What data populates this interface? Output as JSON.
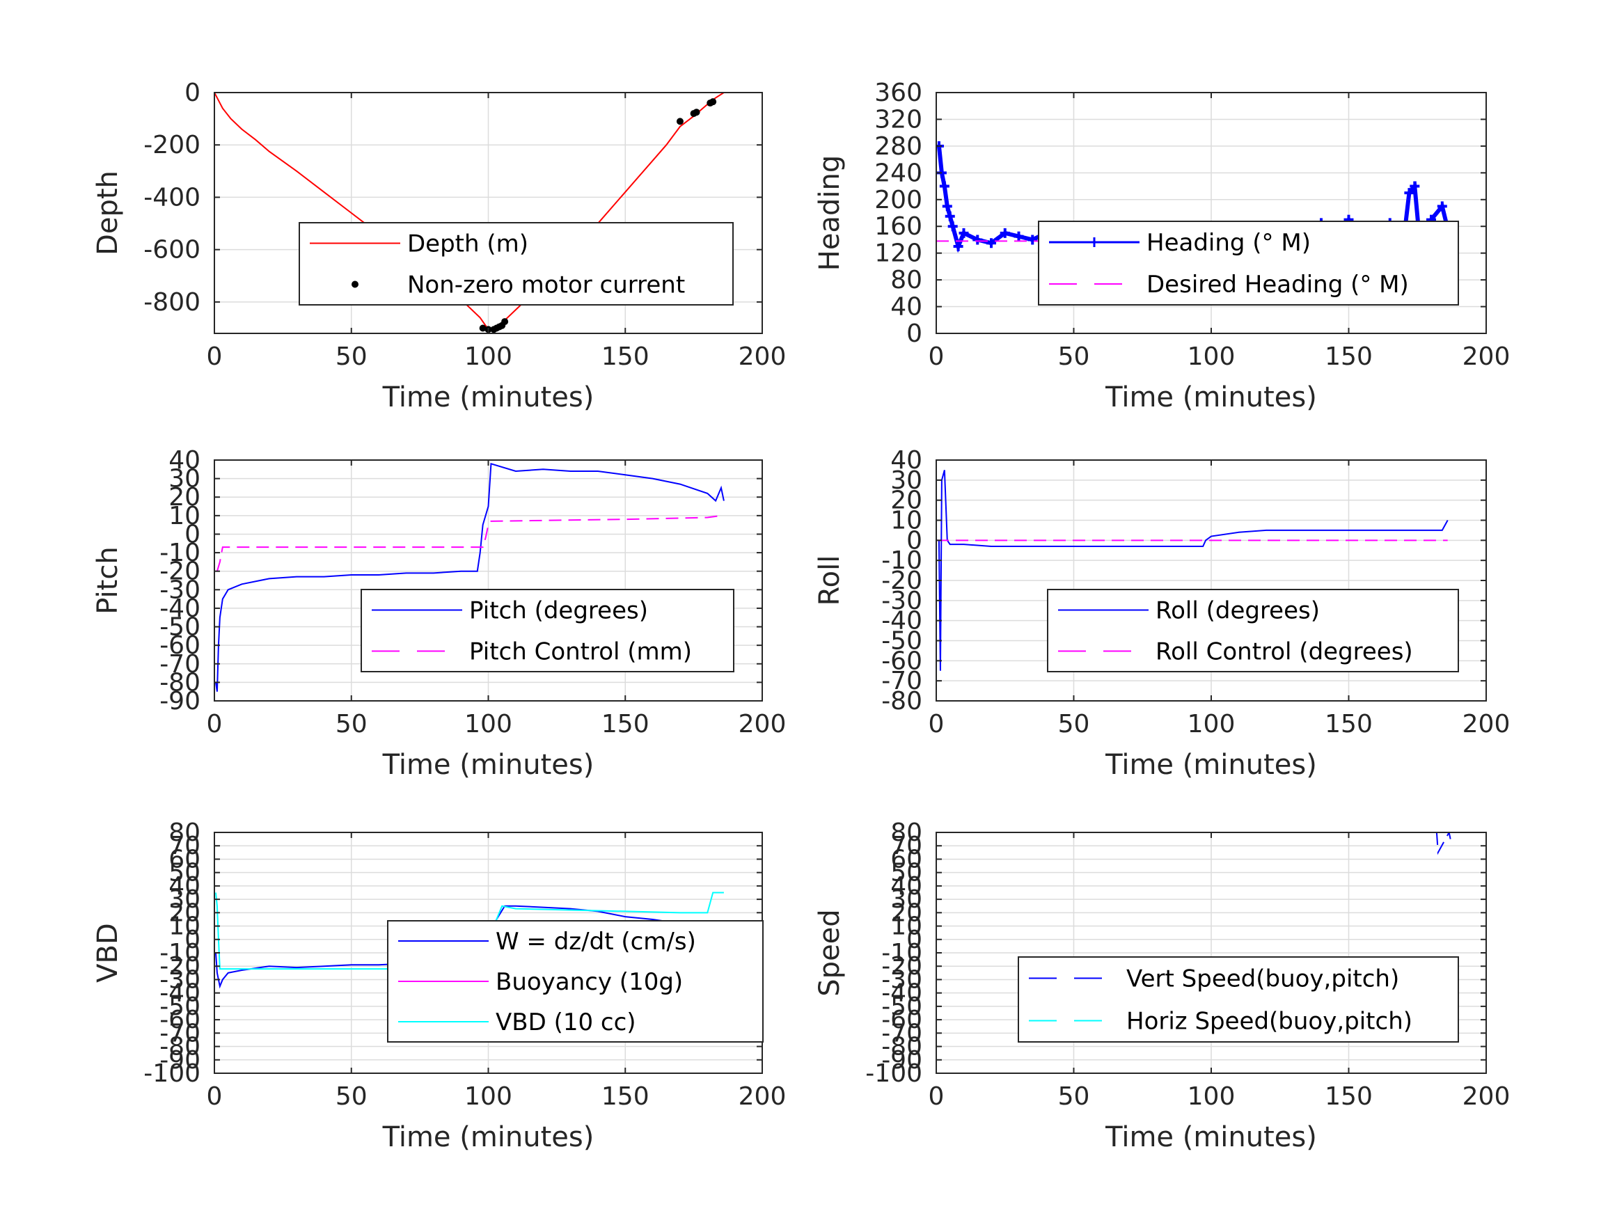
{
  "chart_data": [
    {
      "type": "line",
      "xlabel": "Time (minutes)",
      "ylabel": "Depth",
      "xlim": [
        0,
        200
      ],
      "ylim": [
        -920,
        0
      ],
      "xticks": [
        "0",
        "50",
        "100",
        "150",
        "200"
      ],
      "yticks": [
        0,
        -200,
        -400,
        -600,
        -800
      ],
      "grid": true,
      "legend_placement": "center-right",
      "series": [
        {
          "name": "Depth (m)",
          "color": "#ff0000",
          "style": "solid",
          "x": [
            0,
            3,
            6,
            10,
            15,
            20,
            30,
            40,
            50,
            60,
            70,
            80,
            90,
            97,
            100,
            103,
            105,
            110,
            120,
            130,
            140,
            150,
            160,
            165,
            170,
            175,
            180,
            183,
            186
          ],
          "y": [
            0,
            -60,
            -100,
            -140,
            -180,
            -225,
            -300,
            -380,
            -460,
            -540,
            -620,
            -700,
            -790,
            -860,
            -905,
            -900,
            -880,
            -830,
            -730,
            -620,
            -500,
            -380,
            -260,
            -200,
            -130,
            -90,
            -45,
            -20,
            0
          ]
        },
        {
          "name": "Non-zero motor current",
          "color": "#000000",
          "style": "markers",
          "x": [
            98,
            100,
            102,
            103,
            104,
            105,
            106,
            170,
            175,
            176,
            181,
            182
          ],
          "y": [
            -900,
            -905,
            -905,
            -900,
            -895,
            -890,
            -875,
            -110,
            -80,
            -75,
            -40,
            -35
          ]
        }
      ]
    },
    {
      "type": "line",
      "xlabel": "Time (minutes)",
      "ylabel": "Heading",
      "xlim": [
        0,
        200
      ],
      "ylim": [
        0,
        360
      ],
      "xticks": [
        "0",
        "50",
        "100",
        "150",
        "200"
      ],
      "yticks": [
        0,
        40,
        80,
        120,
        160,
        200,
        240,
        280,
        320,
        360
      ],
      "grid": true,
      "legend_placement": "center-right",
      "series": [
        {
          "name": "Heading (° M)",
          "color": "#0000ff",
          "style": "plus-markers",
          "x": [
            1,
            2,
            3,
            4,
            5,
            6,
            8,
            10,
            15,
            20,
            25,
            30,
            35,
            40,
            45,
            50,
            55,
            60,
            65,
            70,
            75,
            80,
            85,
            90,
            95,
            98,
            100,
            102,
            104,
            106,
            110,
            115,
            120,
            125,
            130,
            135,
            140,
            145,
            150,
            155,
            160,
            165,
            170,
            172,
            174,
            176,
            180,
            184,
            187
          ],
          "y": [
            280,
            240,
            220,
            190,
            175,
            160,
            130,
            150,
            140,
            135,
            150,
            145,
            140,
            150,
            145,
            150,
            155,
            140,
            150,
            145,
            140,
            145,
            150,
            155,
            140,
            110,
            100,
            90,
            95,
            120,
            150,
            140,
            130,
            160,
            150,
            130,
            165,
            140,
            170,
            130,
            150,
            165,
            140,
            210,
            220,
            130,
            170,
            190,
            140
          ]
        },
        {
          "name": "Desired Heading (° M)",
          "color": "#ff00ff",
          "style": "dashed",
          "x": [
            0,
            187
          ],
          "y": [
            138,
            138
          ]
        }
      ]
    },
    {
      "type": "line",
      "xlabel": "Time (minutes)",
      "ylabel": "Pitch",
      "xlim": [
        0,
        200
      ],
      "ylim": [
        -90,
        40
      ],
      "xticks": [
        "0",
        "50",
        "100",
        "150",
        "200"
      ],
      "yticks": [
        40,
        30,
        20,
        10,
        0,
        -10,
        -20,
        -30,
        -40,
        -50,
        -60,
        -70,
        -80,
        -90
      ],
      "grid": true,
      "legend_placement": "lower-right",
      "series": [
        {
          "name": "Pitch (degrees)",
          "color": "#0000ff",
          "style": "solid",
          "x": [
            0.5,
            1,
            1.5,
            2,
            3,
            5,
            10,
            20,
            30,
            40,
            50,
            60,
            70,
            80,
            90,
            96,
            97,
            98,
            99,
            100,
            101,
            110,
            120,
            130,
            140,
            150,
            160,
            170,
            180,
            183,
            185,
            186
          ],
          "y": [
            -80,
            -85,
            -60,
            -45,
            -35,
            -30,
            -27,
            -24,
            -23,
            -23,
            -22,
            -22,
            -21,
            -21,
            -20,
            -20,
            -10,
            5,
            10,
            15,
            38,
            34,
            35,
            34,
            34,
            32,
            30,
            27,
            22,
            18,
            25,
            18
          ]
        },
        {
          "name": "Pitch Control (mm)",
          "color": "#ff00ff",
          "style": "dashed",
          "x": [
            1,
            2,
            3,
            97,
            98,
            99,
            100,
            101,
            150,
            180,
            185
          ],
          "y": [
            -20,
            -15,
            -7,
            -7,
            -7,
            -2,
            5,
            7,
            8,
            9,
            10
          ]
        }
      ]
    },
    {
      "type": "line",
      "xlabel": "Time (minutes)",
      "ylabel": "Roll",
      "xlim": [
        0,
        200
      ],
      "ylim": [
        -80,
        40
      ],
      "xticks": [
        "0",
        "50",
        "100",
        "150",
        "200"
      ],
      "yticks": [
        40,
        30,
        20,
        10,
        0,
        -10,
        -20,
        -30,
        -40,
        -50,
        -60,
        -70,
        -80
      ],
      "grid": true,
      "legend_placement": "lower-right",
      "series": [
        {
          "name": "Roll (degrees)",
          "color": "#0000ff",
          "style": "solid",
          "x": [
            1,
            1.5,
            2,
            3,
            4,
            5,
            10,
            20,
            30,
            35,
            40,
            50,
            60,
            70,
            80,
            90,
            97,
            98,
            100,
            110,
            120,
            130,
            140,
            150,
            160,
            170,
            175,
            180,
            184,
            186
          ],
          "y": [
            0,
            -65,
            30,
            35,
            0,
            -2,
            -2,
            -3,
            -3,
            -3,
            -3,
            -3,
            -3,
            -3,
            -3,
            -3,
            -3,
            0,
            2,
            4,
            5,
            5,
            5,
            5,
            5,
            5,
            5,
            5,
            5,
            10
          ]
        },
        {
          "name": "Roll Control (degrees)",
          "color": "#ff00ff",
          "style": "dashed",
          "x": [
            0,
            5,
            10,
            20,
            30,
            40,
            50,
            60,
            70,
            80,
            90,
            97,
            100,
            110,
            120,
            130,
            140,
            150,
            160,
            170,
            180,
            186
          ],
          "y": [
            0,
            0,
            0,
            0,
            0,
            0,
            0,
            0,
            0,
            0,
            0,
            0,
            0,
            0,
            0,
            0,
            0,
            0,
            0,
            0,
            0,
            0
          ]
        }
      ]
    },
    {
      "type": "line",
      "xlabel": "Time (minutes)",
      "ylabel": "VBD",
      "xlim": [
        0,
        200
      ],
      "ylim": [
        -100,
        80
      ],
      "xticks": [
        "0",
        "50",
        "100",
        "150",
        "200"
      ],
      "yticks": [
        80,
        70,
        60,
        50,
        40,
        30,
        20,
        10,
        0,
        -10,
        -20,
        -30,
        -40,
        -50,
        -60,
        -70,
        -80,
        -90,
        -100
      ],
      "grid": true,
      "legend_placement": "center-right",
      "series": [
        {
          "name": "W = dz/dt (cm/s)",
          "color": "#0000ff",
          "style": "solid",
          "x": [
            0.5,
            1,
            2,
            3,
            5,
            10,
            20,
            30,
            40,
            50,
            60,
            70,
            80,
            90,
            96,
            98,
            100,
            103,
            106,
            110,
            120,
            130,
            140,
            150,
            160,
            170,
            180,
            186
          ],
          "y": [
            -10,
            -25,
            -35,
            -30,
            -25,
            -23,
            -20,
            -21,
            -20,
            -19,
            -19,
            -18,
            -17,
            -18,
            -19,
            -20,
            0,
            15,
            25,
            25,
            24,
            23,
            21,
            17,
            15,
            12,
            10,
            10
          ]
        },
        {
          "name": "Buoyancy (10g)",
          "color": "#ff00ff",
          "style": "solid",
          "x": [],
          "y": []
        },
        {
          "name": "VBD (10 cc)",
          "color": "#00ffff",
          "style": "solid",
          "x": [
            0.5,
            1,
            1.5,
            2,
            5,
            97,
            98,
            100,
            105,
            110,
            170,
            175,
            180,
            182,
            186
          ],
          "y": [
            35,
            25,
            0,
            -22,
            -22,
            -22,
            -22,
            0,
            25,
            23,
            20,
            20,
            20,
            35,
            35
          ]
        }
      ]
    },
    {
      "type": "line",
      "xlabel": "Time (minutes)",
      "ylabel": "Speed",
      "xlim": [
        0,
        200
      ],
      "ylim": [
        -100,
        80
      ],
      "xticks": [
        "0",
        "50",
        "100",
        "150",
        "200"
      ],
      "yticks": [
        80,
        70,
        60,
        50,
        40,
        30,
        20,
        10,
        0,
        -10,
        -20,
        -30,
        -40,
        -50,
        -60,
        -70,
        -80,
        -90,
        -100
      ],
      "grid": true,
      "legend_placement": "lower-right",
      "series": [
        {
          "name": "Vert Speed(buoy,pitch)",
          "color": "#0000ff",
          "style": "dashed",
          "x": [
            182,
            182.5,
            186.5,
            187
          ],
          "y": [
            80,
            65,
            80,
            75
          ]
        },
        {
          "name": "Horiz Speed(buoy,pitch)",
          "color": "#00ffff",
          "style": "dashed",
          "x": [],
          "y": []
        }
      ]
    }
  ]
}
